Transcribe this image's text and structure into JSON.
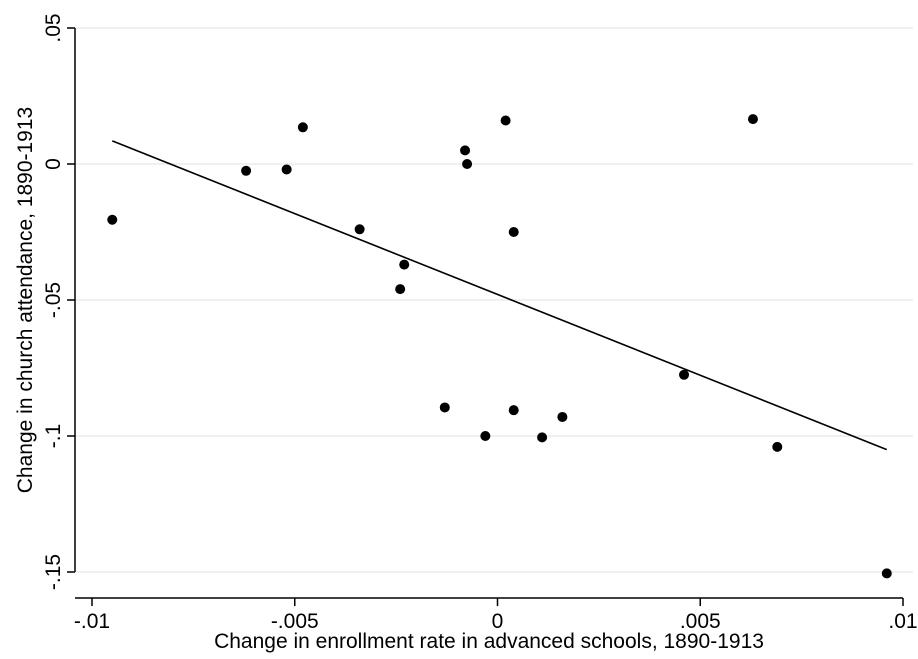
{
  "chart_data": {
    "type": "scatter",
    "title": "",
    "xlabel": "Change in enrollment rate in advanced schools, 1890-1913",
    "ylabel": "Change in church attendance, 1890-1913",
    "xlim": [
      -0.01,
      0.01
    ],
    "ylim": [
      -0.15,
      0.05
    ],
    "xticks": [
      -0.01,
      -0.005,
      0,
      0.005,
      0.01
    ],
    "xtick_labels": [
      "-.01",
      "-.005",
      "0",
      ".005",
      ".01"
    ],
    "yticks": [
      -0.15,
      -0.1,
      -0.05,
      0,
      0.05
    ],
    "ytick_labels": [
      "-.15",
      "-.1",
      "-.05",
      "0",
      ".05"
    ],
    "grid": "horizontal",
    "colors": {
      "points": "#000000",
      "fit_line": "#000000",
      "grid": "#e6e6e6"
    },
    "points": [
      {
        "x": -0.0095,
        "y": -0.0205
      },
      {
        "x": -0.0062,
        "y": -0.0025
      },
      {
        "x": -0.0052,
        "y": -0.002
      },
      {
        "x": -0.0048,
        "y": 0.0135
      },
      {
        "x": -0.0034,
        "y": -0.024
      },
      {
        "x": -0.0023,
        "y": -0.037
      },
      {
        "x": -0.0024,
        "y": -0.046
      },
      {
        "x": -0.0013,
        "y": -0.0895
      },
      {
        "x": -0.0008,
        "y": 0.005
      },
      {
        "x": -0.00075,
        "y": 0.0
      },
      {
        "x": -0.0003,
        "y": -0.1
      },
      {
        "x": 0.0002,
        "y": 0.016
      },
      {
        "x": 0.0004,
        "y": -0.025
      },
      {
        "x": 0.0004,
        "y": -0.0905
      },
      {
        "x": 0.0011,
        "y": -0.1005
      },
      {
        "x": 0.0016,
        "y": -0.093
      },
      {
        "x": 0.0046,
        "y": -0.0775
      },
      {
        "x": 0.0063,
        "y": 0.0165
      },
      {
        "x": 0.0069,
        "y": -0.104
      },
      {
        "x": 0.0096,
        "y": -0.1505
      }
    ],
    "fit_line": {
      "x": [
        -0.0095,
        0.0096
      ],
      "y": [
        0.0085,
        -0.105
      ]
    }
  }
}
